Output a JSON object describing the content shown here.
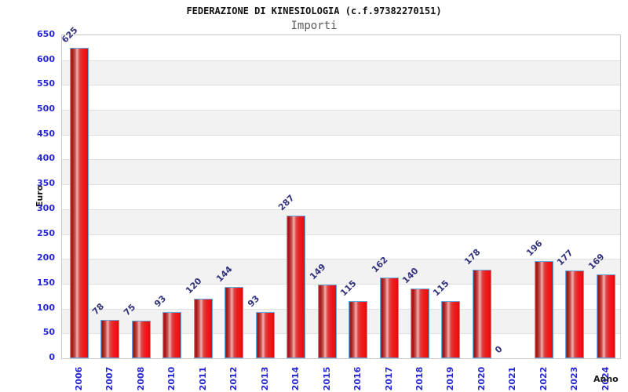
{
  "chart_data": {
    "type": "bar",
    "title": "FEDERAZIONE DI KINESIOLOGIA (c.f.97382270151)",
    "subtitle": "Importi",
    "xlabel": "Anno",
    "ylabel": "Euro",
    "categories": [
      "2006",
      "2007",
      "2008",
      "2010",
      "2011",
      "2012",
      "2013",
      "2014",
      "2015",
      "2016",
      "2017",
      "2018",
      "2019",
      "2020",
      "2021",
      "2022",
      "2023",
      "2024"
    ],
    "values": [
      625,
      78,
      75,
      93,
      120,
      144,
      93,
      287,
      149,
      115,
      162,
      140,
      115,
      178,
      0,
      196,
      177,
      169
    ],
    "ylim": [
      0,
      650
    ],
    "ytick_step": 50,
    "grid": true,
    "alternating_bands": true,
    "legend": "none",
    "colors": {
      "title": "#111111",
      "subtitle": "#595959",
      "tick_label": "#2727d2",
      "value_label": "#32327d",
      "axis_title": "#1a1a1a",
      "band": "#f2f2f2",
      "gridline": "#e0e0e0",
      "plot_border": "#c9c9c9",
      "bar_border": "#64a8e0",
      "bar_red_dark": "#9e1212",
      "bar_red_highlight": "#f2b0b0",
      "bar_red_bright": "#f31111"
    }
  }
}
